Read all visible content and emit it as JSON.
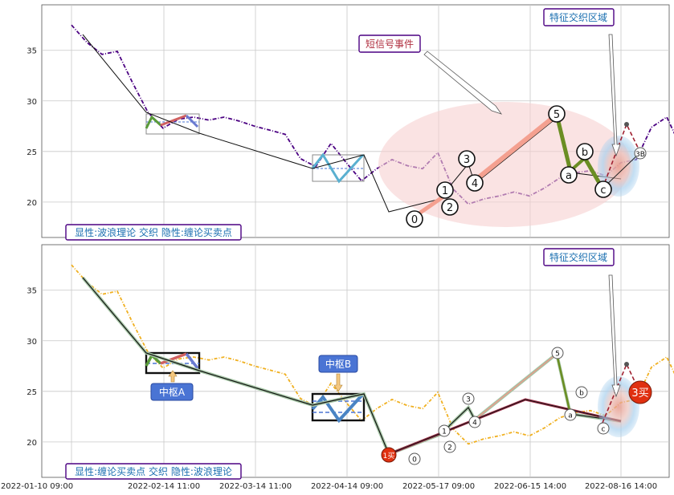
{
  "colors": {
    "price_top": "#4b0082",
    "price_bottom": "#f0b020",
    "grid": "#c8c8c8",
    "label_border": "#4b0082",
    "label_text": "#1a6fb0",
    "annotation_red": "#b03040",
    "blue_box": "#4a74d4",
    "marker_red": "#e03010",
    "ellipse_fill": "#f6d0d0"
  },
  "chart_data": [
    {
      "type": "line",
      "panel": "top",
      "xlim": [
        0,
        230
      ],
      "ylim": [
        16.5,
        39.5
      ],
      "yticks": [
        20,
        25,
        30,
        35
      ],
      "x": [
        0,
        5,
        10,
        15,
        20,
        25,
        30,
        35,
        40,
        45,
        50,
        55,
        60,
        65,
        70,
        75,
        80,
        85,
        90,
        95,
        100,
        105,
        110,
        115,
        120,
        125,
        130,
        135,
        140,
        145,
        150,
        155,
        160,
        165,
        170,
        175,
        180,
        185,
        190,
        195,
        200,
        205,
        210,
        215,
        220
      ],
      "series": [
        {
          "values": [
            37.5,
            35.8,
            34.6,
            34.9,
            31.8,
            28.9,
            27.3,
            28.2,
            28.4,
            28.1,
            28.4,
            28.0,
            27.5,
            27.1,
            26.7,
            24.3,
            23.5,
            25.8,
            23.9,
            22.1,
            23.3,
            24.2,
            23.6,
            23.3,
            24.9,
            21.3,
            19.8,
            20.3,
            20.6,
            21.0,
            20.6,
            21.4,
            22.4,
            22.9,
            23.1,
            22.6,
            23.9,
            24.2,
            27.4,
            28.4,
            25.2,
            22.3,
            23.4,
            25.7,
            27.6
          ]
        }
      ],
      "wave": {
        "x": [
          0,
          21,
          58,
          84,
          109,
          118,
          128,
          131,
          134,
          140,
          157,
          164,
          170,
          180,
          188
        ],
        "values": [
          37.5,
          33.5,
          27.0,
          23.5,
          19.3,
          20.1,
          20.5,
          21.4,
          23.5,
          22.0,
          28.9,
          23.0,
          24.5,
          22.0,
          28.0
        ],
        "labels": [
          {
            "idx": 5,
            "text": "0"
          },
          {
            "idx": 7,
            "text": "1"
          },
          {
            "idx": 6,
            "text": "2"
          },
          {
            "idx": 8,
            "text": "3"
          },
          {
            "idx": 9,
            "text": "4"
          },
          {
            "idx": 10,
            "text": "5"
          },
          {
            "idx": 11,
            "text": "a"
          },
          {
            "idx": 12,
            "text": "b"
          },
          {
            "idx": 13,
            "text": "c"
          }
        ]
      },
      "label_3b": "3B",
      "annotation_signal": "短信号事件",
      "annotation_zone": "特征交织区域",
      "panel_label": "显性:波浪理论 交织 隐性:缠论买卖点"
    },
    {
      "type": "line",
      "panel": "bottom",
      "xlim": [
        0,
        230
      ],
      "ylim": [
        16.5,
        39.5
      ],
      "yticks": [
        20,
        25,
        30,
        35
      ],
      "x": [
        0,
        5,
        10,
        15,
        20,
        25,
        30,
        35,
        40,
        45,
        50,
        55,
        60,
        65,
        70,
        75,
        80,
        85,
        90,
        95,
        100,
        105,
        110,
        115,
        120,
        125,
        130,
        135,
        140,
        145,
        150,
        155,
        160,
        165,
        170,
        175,
        180,
        185,
        190,
        195,
        200,
        205,
        210,
        215,
        220
      ],
      "series": [
        {
          "values": [
            37.5,
            35.8,
            34.6,
            34.9,
            31.8,
            28.9,
            27.3,
            28.2,
            28.4,
            28.1,
            28.4,
            28.0,
            27.5,
            27.1,
            26.7,
            24.3,
            23.5,
            25.8,
            23.9,
            22.1,
            23.3,
            24.2,
            23.6,
            23.3,
            24.9,
            21.3,
            19.8,
            20.3,
            20.6,
            21.0,
            20.6,
            21.4,
            22.4,
            22.9,
            23.1,
            22.6,
            23.9,
            24.2,
            27.4,
            28.4,
            25.2,
            22.3,
            23.4,
            25.7,
            27.6
          ]
        }
      ],
      "pivot_a": "中枢A",
      "pivot_b": "中枢B",
      "buy1": "1买",
      "buy3": "3买",
      "annotation_zone": "特征交织区域",
      "panel_label": "显性:缠论买卖点 交织 隐性:波浪理论"
    }
  ],
  "x_tick_labels": [
    "2022-01-10 09:00",
    "2022-02-14 11:00",
    "2022-03-14 11:00",
    "2022-04-14 09:00",
    "2022-05-17 09:00",
    "2022-06-15 14:00",
    "2022-08-16 14:00"
  ]
}
